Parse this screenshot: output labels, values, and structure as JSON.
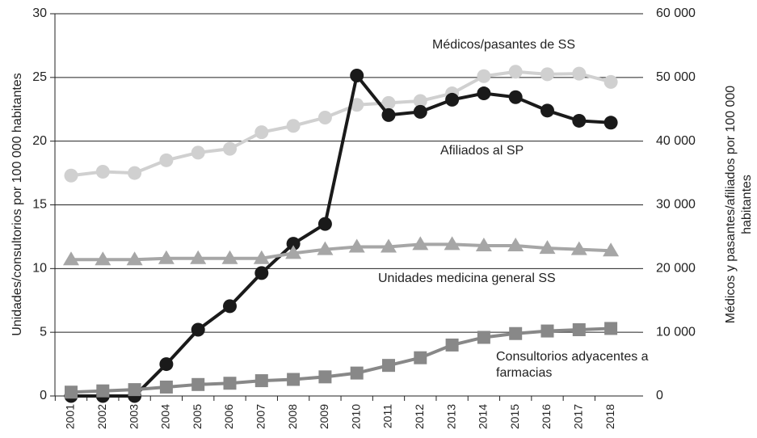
{
  "chart_data": {
    "type": "line",
    "categories": [
      "2001",
      "2002",
      "2003",
      "2004",
      "2005",
      "2006",
      "2007",
      "2008",
      "2009",
      "2010",
      "2011",
      "2012",
      "2013",
      "2014",
      "2015",
      "2016",
      "2017",
      "2018"
    ],
    "ylabel": "Unidades/consultorios por 100 000 habitantes",
    "y2label": "Médicos y pasantes/afiliados por 100 000 habitantes",
    "ylim": [
      0,
      30
    ],
    "yticks": [
      0,
      5,
      10,
      15,
      20,
      25,
      30
    ],
    "y2lim": [
      0,
      60000
    ],
    "y2ticks": [
      0,
      {
        "value": 10000,
        "label": "10 000"
      },
      {
        "value": 20000,
        "label": "20 000"
      },
      {
        "value": 30000,
        "label": "30 000"
      },
      {
        "value": 40000,
        "label": "40 000"
      },
      {
        "value": 50000,
        "label": "50 000"
      },
      {
        "value": 60000,
        "label": "60 000"
      }
    ],
    "grid": true,
    "series": [
      {
        "name": "Médicos/pasantes de SS",
        "color": "#d0d0d0",
        "marker": "circle",
        "axis": "y2",
        "values": [
          34600,
          35200,
          35000,
          37000,
          38200,
          38800,
          41400,
          42400,
          43700,
          45700,
          46000,
          46300,
          47500,
          50200,
          50900,
          50500,
          50600,
          49300
        ]
      },
      {
        "name": "Afiliados al SP",
        "color": "#1a1a1a",
        "marker": "circle",
        "axis": "y2",
        "values": [
          0,
          0,
          0,
          5000,
          10400,
          14100,
          19300,
          23900,
          27000,
          50300,
          44100,
          44600,
          46500,
          47500,
          46900,
          44800,
          43200,
          42900
        ]
      },
      {
        "name": "Unidades medicina general SS",
        "color": "#a6a6a6",
        "marker": "triangle",
        "axis": "y",
        "values": [
          10.7,
          10.7,
          10.7,
          10.8,
          10.8,
          10.8,
          10.8,
          11.2,
          11.5,
          11.7,
          11.7,
          11.9,
          11.9,
          11.8,
          11.8,
          11.6,
          11.5,
          11.4
        ]
      },
      {
        "name": "Consultorios adyacentes a farmacias",
        "color": "#888888",
        "marker": "square",
        "axis": "y",
        "values": [
          0.3,
          0.4,
          0.5,
          0.7,
          0.9,
          1.0,
          1.2,
          1.3,
          1.5,
          1.8,
          2.4,
          3.0,
          4.0,
          4.6,
          4.9,
          5.1,
          5.2,
          5.3
        ]
      }
    ]
  }
}
